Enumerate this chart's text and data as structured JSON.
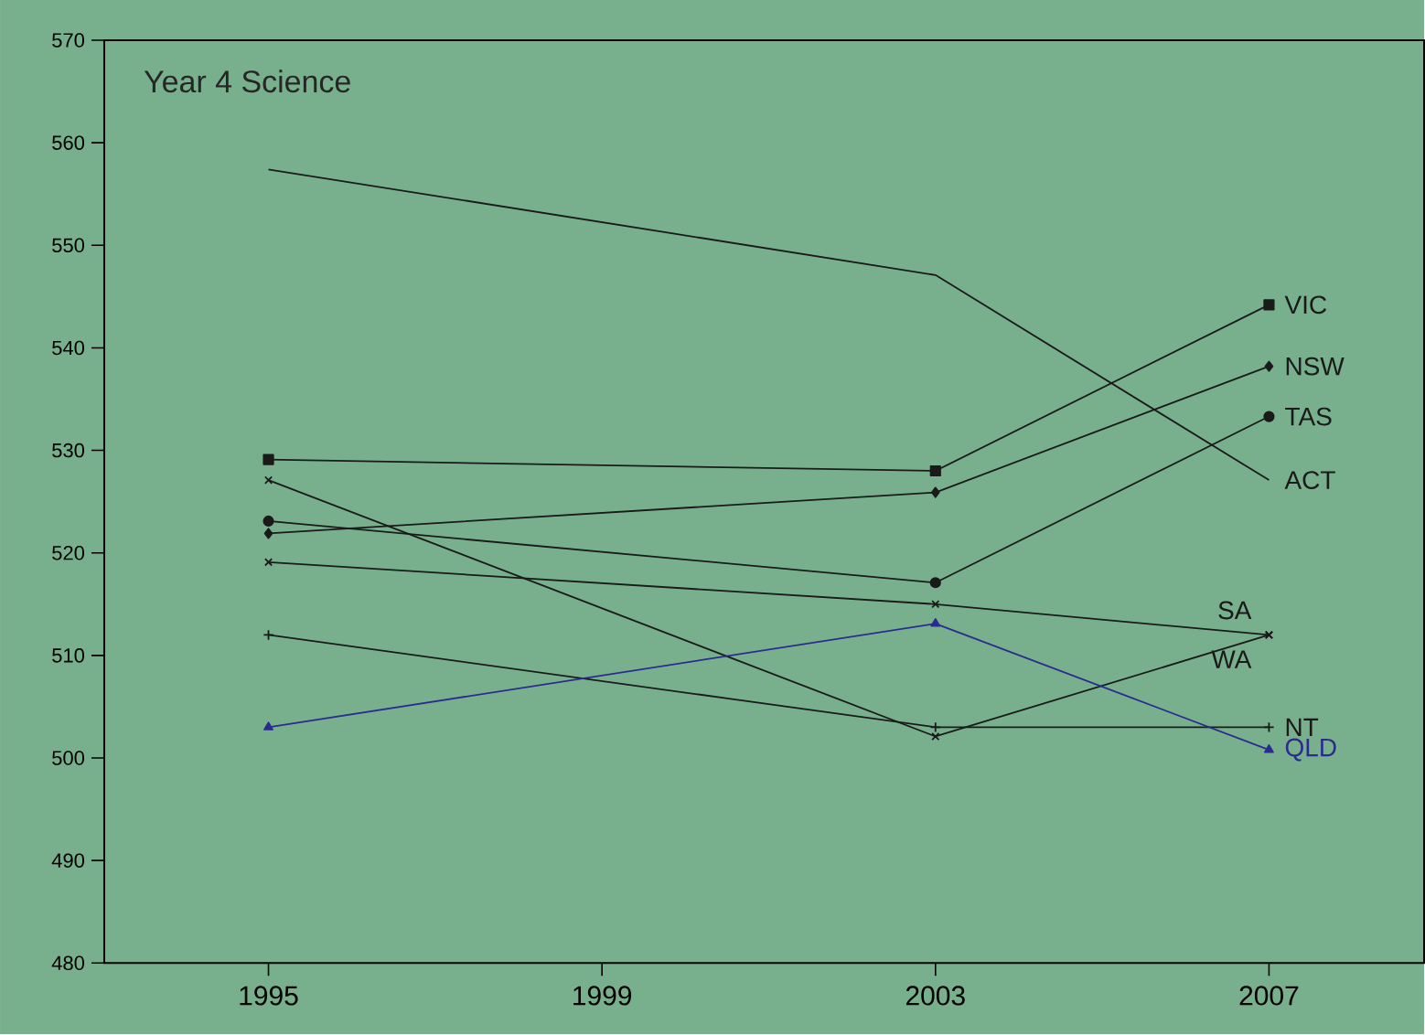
{
  "chart_data": {
    "type": "line",
    "title": "Year 4 Science",
    "x": [
      1995,
      2003,
      2007
    ],
    "xlim": [
      1993.03,
      2008.86
    ],
    "xticks": [
      1995,
      1999,
      2003,
      2007
    ],
    "ylim": [
      480,
      570
    ],
    "yticks": [
      480,
      490,
      500,
      510,
      520,
      530,
      540,
      550,
      560,
      570
    ],
    "grid": false,
    "legend": false,
    "series": [
      {
        "name": "ACT",
        "color": "#1a1a1a",
        "marker": "none",
        "values": [
          557.4,
          547.1,
          527.1
        ]
      },
      {
        "name": "VIC",
        "color": "#1a1a1a",
        "marker": "square",
        "values": [
          529.1,
          528,
          544.2
        ]
      },
      {
        "name": "NSW",
        "color": "#1a1a1a",
        "marker": "diamond",
        "values": [
          521.9,
          525.9,
          538.2
        ]
      },
      {
        "name": "TAS",
        "color": "#1a1a1a",
        "marker": "circle",
        "values": [
          523.1,
          517.1,
          533.3
        ]
      },
      {
        "name": "SA",
        "color": "#1a1a1a",
        "marker": "cross",
        "values": [
          519.1,
          515,
          512
        ]
      },
      {
        "name": "WA",
        "color": "#1a1a1a",
        "marker": "cross",
        "values": [
          527.1,
          502.1,
          512
        ]
      },
      {
        "name": "NT",
        "color": "#1a1a1a",
        "marker": "plus",
        "values": [
          512,
          503,
          503
        ]
      },
      {
        "name": "QLD",
        "color": "#2b2b8f",
        "marker": "triangle",
        "values": [
          503,
          513.1,
          500.8
        ]
      }
    ]
  }
}
